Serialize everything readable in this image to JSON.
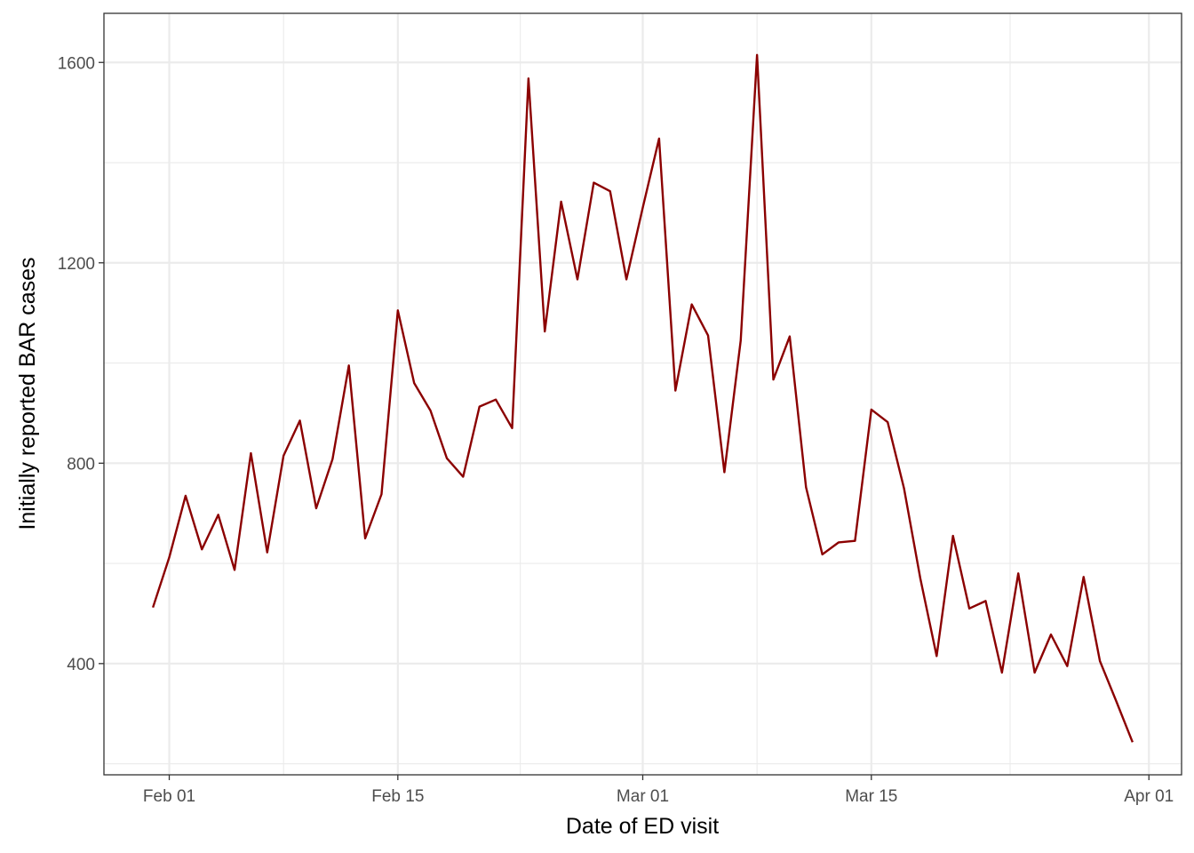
{
  "chart_data": {
    "type": "line",
    "xlabel": "Date of ED visit",
    "ylabel": "Initially reported BAR cases",
    "x_axis_type": "date",
    "x_start": "2020-01-31",
    "x_range": [
      "2020-01-28",
      "2020-04-03"
    ],
    "ylim": [
      178,
      1698
    ],
    "grid": true,
    "legend": "none",
    "line_color": "#8B0000",
    "x_ticks": [
      {
        "date": "2020-02-01",
        "label": "Feb 01"
      },
      {
        "date": "2020-02-15",
        "label": "Feb 15"
      },
      {
        "date": "2020-03-01",
        "label": "Mar 01"
      },
      {
        "date": "2020-03-15",
        "label": "Mar 15"
      },
      {
        "date": "2020-04-01",
        "label": "Apr 01"
      }
    ],
    "y_ticks": [
      {
        "value": 400,
        "label": "400"
      },
      {
        "value": 800,
        "label": "800"
      },
      {
        "value": 1200,
        "label": "1200"
      },
      {
        "value": 1600,
        "label": "1600"
      }
    ],
    "values": [
      512,
      612,
      735,
      628,
      697,
      587,
      820,
      622,
      815,
      885,
      710,
      808,
      995,
      650,
      738,
      1105,
      960,
      905,
      810,
      773,
      913,
      927,
      870,
      1568,
      1063,
      1322,
      1167,
      1360,
      1343,
      1167,
      1310,
      1448,
      945,
      1117,
      1055,
      782,
      1045,
      1615,
      967,
      1053,
      752,
      618,
      642,
      645,
      907,
      882,
      750,
      570,
      415,
      655,
      510,
      525,
      382,
      580,
      382,
      458,
      395,
      573,
      405,
      325,
      243
    ]
  }
}
